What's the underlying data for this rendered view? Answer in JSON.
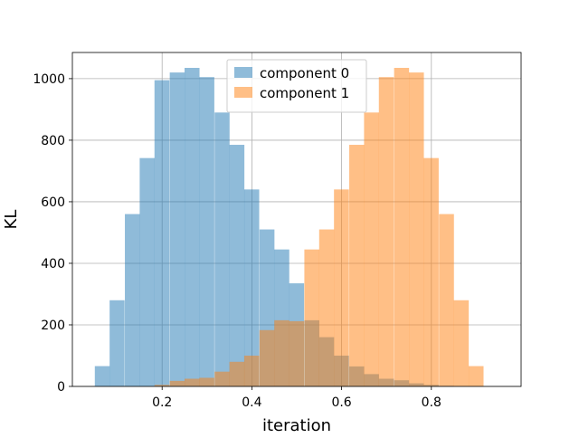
{
  "chart_data": {
    "type": "bar",
    "title": "",
    "xlabel": "iteration",
    "ylabel": "KL",
    "xlim": [
      0.0,
      1.0
    ],
    "ylim": [
      0,
      1085
    ],
    "grid": true,
    "legend_position": "top-center",
    "bin_width": 0.03333,
    "xticks": [
      0.2,
      0.4,
      0.6,
      0.8
    ],
    "xtick_labels": [
      "0.2",
      "0.4",
      "0.6",
      "0.8"
    ],
    "yticks": [
      0,
      200,
      400,
      600,
      800,
      1000
    ],
    "ytick_labels": [
      "0",
      "200",
      "400",
      "600",
      "800",
      "1000"
    ],
    "series": [
      {
        "name": "component 0",
        "color": "#1f77b4",
        "opacity": 0.5,
        "bin_starts": [
          0.05,
          0.083,
          0.117,
          0.15,
          0.183,
          0.217,
          0.25,
          0.283,
          0.317,
          0.35,
          0.383,
          0.417,
          0.45,
          0.483,
          0.517,
          0.55,
          0.583,
          0.617,
          0.65,
          0.683,
          0.717,
          0.75,
          0.783,
          0.817
        ],
        "values": [
          66,
          280,
          560,
          742,
          995,
          1020,
          1035,
          1005,
          890,
          785,
          640,
          510,
          445,
          335,
          215,
          160,
          100,
          65,
          40,
          25,
          20,
          10,
          5,
          2
        ]
      },
      {
        "name": "component 1",
        "color": "#ff7f0e",
        "opacity": 0.5,
        "bin_starts": [
          0.183,
          0.217,
          0.25,
          0.283,
          0.317,
          0.35,
          0.383,
          0.417,
          0.45,
          0.483,
          0.517,
          0.55,
          0.583,
          0.617,
          0.65,
          0.683,
          0.717,
          0.75,
          0.783,
          0.817,
          0.85,
          0.883,
          0.917
        ],
        "values": [
          5,
          18,
          25,
          28,
          48,
          80,
          100,
          183,
          215,
          212,
          445,
          510,
          640,
          785,
          890,
          1005,
          1035,
          1020,
          742,
          560,
          280,
          66,
          0
        ]
      }
    ]
  }
}
